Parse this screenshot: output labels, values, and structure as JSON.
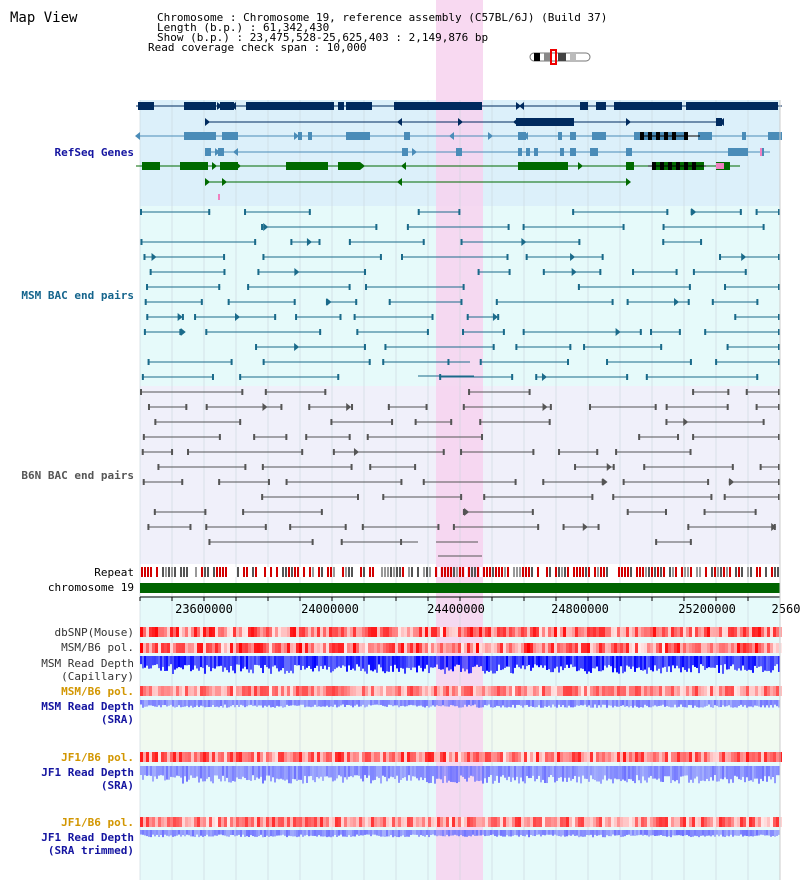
{
  "header": {
    "title": "Map View",
    "info_lines": [
      "Chromosome     : Chromosome 19, reference assembly (C57BL/6J) (Build 37)",
      "Length (b.p.) : 61,342,430",
      "Show (b.p.) : 23,475,528-25,625,403 : 2,149,876 bp",
      "Read coverage check span : 10,000"
    ]
  },
  "colors": {
    "navy": "#002a5e",
    "steel": "#4a8cb8",
    "green": "#006a00",
    "teal_pair": "#1a6a8a",
    "gray_pair": "#555555",
    "highlight": "#f7d2ef",
    "light_blue_bg": "#dcf0fa",
    "light_cyan_bg": "#e6fafa",
    "lavender_bg": "#f0f0fa",
    "chrom_bar": "#006400",
    "label_blue": "#1414a0",
    "label_orange": "#d29600",
    "label_teal": "#14648c",
    "depth_blue": "#0000ff",
    "depth_light": "#6f73ff"
  },
  "tracks": {
    "refseq": "RefSeq Genes",
    "msm_bac": "MSM BAC end pairs",
    "b6n_bac": "B6N BAC end pairs",
    "repeat": "Repeat",
    "chromosome": "chromosome 19",
    "dbsnp": "dbSNP(Mouse)",
    "msm_b6_pol_1": "MSM/B6 pol.",
    "msm_depth_cap_1": "MSM Read Depth",
    "msm_depth_cap_2": "(Capillary)",
    "msm_b6_pol_2": "MSM/B6 pol.",
    "msm_depth_sra_1": "MSM Read Depth",
    "msm_depth_sra_2": "(SRA)",
    "jf1_b6_pol_1": "JF1/B6 pol.",
    "jf1_depth_sra_1": "JF1 Read Depth",
    "jf1_depth_sra_2": "(SRA)",
    "jf1_b6_pol_2": "JF1/B6 pol.",
    "jf1_depth_trim_1": "JF1 Read Depth",
    "jf1_depth_trim_2": "(SRA trimmed)"
  },
  "axis": {
    "ticks": [
      "23600000",
      "24000000",
      "24400000",
      "24800000",
      "25200000",
      "2560"
    ]
  }
}
